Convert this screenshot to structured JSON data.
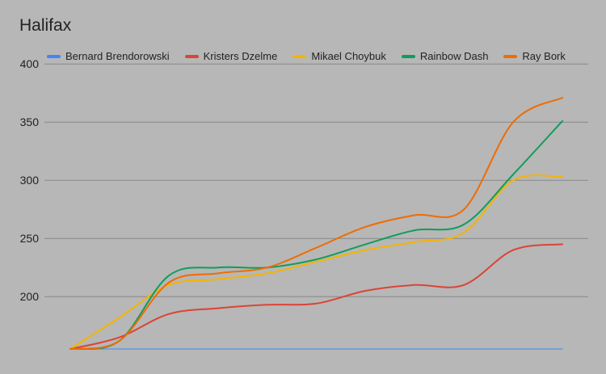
{
  "chart_data": {
    "type": "line",
    "title": "Halifax",
    "xlabel": "",
    "ylabel": "",
    "ylim": [
      155,
      405
    ],
    "y_ticks": [
      200,
      250,
      300,
      350,
      400
    ],
    "x": [
      0,
      1,
      2,
      3,
      4,
      5,
      6,
      7,
      8,
      9,
      10
    ],
    "grid": true,
    "legend_position": "top",
    "smooth": true,
    "series": [
      {
        "name": "Bernard Brendorowski",
        "color": "#4285f4",
        "values": [
          155,
          155,
          155,
          155,
          155,
          155,
          155,
          155,
          155,
          155,
          155
        ]
      },
      {
        "name": "Kristers Dzelme",
        "color": "#db4437",
        "values": [
          155,
          165,
          185,
          190,
          193,
          194,
          205,
          210,
          210,
          240,
          245
        ]
      },
      {
        "name": "Mikael Choybuk",
        "color": "#f4b400",
        "values": [
          155,
          182,
          210,
          215,
          220,
          230,
          240,
          247,
          255,
          300,
          303
        ]
      },
      {
        "name": "Rainbow Dash",
        "color": "#0f9d58",
        "values": [
          155,
          162,
          218,
          225,
          225,
          232,
          245,
          257,
          262,
          305,
          351
        ]
      },
      {
        "name": "Ray Bork",
        "color": "#ef6c00",
        "values": [
          155,
          162,
          212,
          220,
          225,
          242,
          260,
          270,
          275,
          350,
          371
        ]
      }
    ]
  }
}
